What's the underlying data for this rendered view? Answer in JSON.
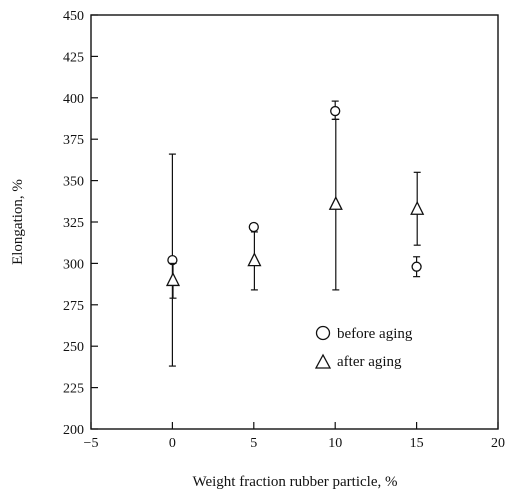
{
  "chart_data": {
    "type": "scatter",
    "title": "",
    "xlabel": "Weight fraction rubber particle, %",
    "ylabel": "Elongation, %",
    "xlim": [
      -5,
      20
    ],
    "ylim": [
      200,
      450
    ],
    "xticks": [
      -5,
      0,
      5,
      10,
      15,
      20
    ],
    "xtick_labels": [
      "−5",
      "0",
      "5",
      "10",
      "15",
      "20"
    ],
    "yticks": [
      200,
      225,
      250,
      275,
      300,
      325,
      350,
      375,
      400,
      425,
      450
    ],
    "ytick_labels": [
      "200",
      "225",
      "250",
      "275",
      "300",
      "325",
      "350",
      "375",
      "400",
      "425",
      "450"
    ],
    "grid": false,
    "legend_position": "lower-right",
    "series": [
      {
        "name": "before aging",
        "marker": "circle",
        "x": [
          0,
          5,
          10,
          15
        ],
        "y": [
          302,
          322,
          392,
          298
        ],
        "err_low": [
          238,
          320,
          387,
          292
        ],
        "err_high": [
          366,
          324,
          398,
          304
        ]
      },
      {
        "name": "after aging",
        "marker": "triangle",
        "x": [
          0,
          5,
          10,
          15
        ],
        "y": [
          290,
          302,
          336,
          333
        ],
        "err_low": [
          279,
          284,
          284,
          311
        ],
        "err_high": [
          300,
          319,
          387,
          355
        ]
      }
    ]
  }
}
